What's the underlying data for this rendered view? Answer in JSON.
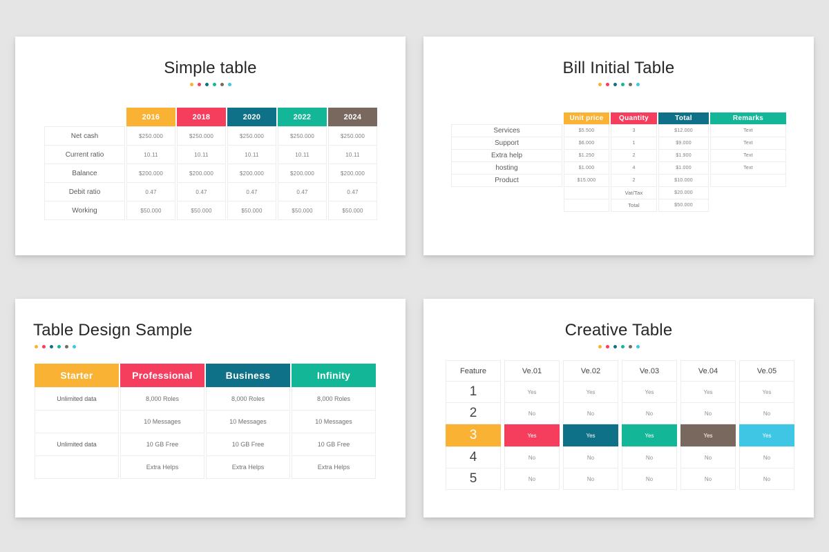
{
  "colors": {
    "page_bg": "#e6e5e5",
    "card_bg": "#ffffff",
    "orange": "#f9b233",
    "pink": "#f53d5e",
    "teal_dark": "#0e7187",
    "green": "#13b797",
    "brown": "#79685e",
    "cyan": "#3fc6e5",
    "dots": [
      "#f9b233",
      "#f53d5e",
      "#0e7187",
      "#13b797",
      "#79685e",
      "#3fc6e5"
    ]
  },
  "slides": {
    "simple": {
      "title": "Simple table",
      "columns": [
        {
          "label": "2016",
          "color": "#f9b233"
        },
        {
          "label": "2018",
          "color": "#f53d5e"
        },
        {
          "label": "2020",
          "color": "#0e7187"
        },
        {
          "label": "2022",
          "color": "#13b797"
        },
        {
          "label": "2024",
          "color": "#79685e"
        }
      ],
      "rows": [
        {
          "label": "Net cash",
          "values": [
            "$250.000",
            "$250.000",
            "$250.000",
            "$250.000",
            "$250.000"
          ]
        },
        {
          "label": "Current ratio",
          "values": [
            "10.11",
            "10.11",
            "10.11",
            "10.11",
            "10.11"
          ]
        },
        {
          "label": "Balance",
          "values": [
            "$200.000",
            "$200.000",
            "$200.000",
            "$200.000",
            "$200.000"
          ]
        },
        {
          "label": "Debit ratio",
          "values": [
            "0.47",
            "0.47",
            "0.47",
            "0.47",
            "0.47"
          ]
        },
        {
          "label": "Working",
          "values": [
            "$50.000",
            "$50.000",
            "$50.000",
            "$50.000",
            "$50.000"
          ]
        }
      ]
    },
    "bill": {
      "title": "Bill Initial Table",
      "columns": [
        {
          "label": "Unit price",
          "color": "#f9b233"
        },
        {
          "label": "Quantity",
          "color": "#f53d5e"
        },
        {
          "label": "Total",
          "color": "#0e7187"
        },
        {
          "label": "Remarks",
          "color": "#13b797"
        }
      ],
      "rows": [
        {
          "label": "Services",
          "unit_price": "$5.500",
          "quantity": "3",
          "total": "$12.000",
          "remarks": "Text"
        },
        {
          "label": "Support",
          "unit_price": "$6.000",
          "quantity": "1",
          "total": "$9.000",
          "remarks": "Text"
        },
        {
          "label": "Extra help",
          "unit_price": "$1.250",
          "quantity": "2",
          "total": "$1.900",
          "remarks": "Text"
        },
        {
          "label": "hosting",
          "unit_price": "$1.000",
          "quantity": "4",
          "total": "$1.000",
          "remarks": "Text"
        },
        {
          "label": "Product",
          "unit_price": "$15.000",
          "quantity": "2",
          "total": "$10.000",
          "remarks": ""
        }
      ],
      "summary": [
        {
          "label": "Vat/Tax",
          "total": "$20.000"
        },
        {
          "label": "Total",
          "total": "$50.000"
        }
      ]
    },
    "design": {
      "title": "Table Design Sample",
      "columns": [
        {
          "label": "Starter",
          "color": "#f9b233"
        },
        {
          "label": "Professional",
          "color": "#f53d5e"
        },
        {
          "label": "Business",
          "color": "#0e7187"
        },
        {
          "label": "Infinity",
          "color": "#13b797"
        }
      ],
      "rows": [
        [
          "Unlimited data",
          "8,000 Roles",
          "8,000 Roles",
          "8,000 Roles"
        ],
        [
          "",
          "10 Messages",
          "10 Messages",
          "10 Messages"
        ],
        [
          "Unlimited data",
          "10 GB Free",
          "10 GB Free",
          "10 GB Free"
        ],
        [
          "",
          "Extra Helps",
          "Extra Helps",
          "Extra Helps"
        ]
      ]
    },
    "creative": {
      "title": "Creative Table",
      "columns": [
        "Feature",
        "Ve.01",
        "Ve.02",
        "Ve.03",
        "Ve.04",
        "Ve.05"
      ],
      "rows": [
        {
          "feature": "1",
          "values": [
            "Yes",
            "Yes",
            "Yes",
            "Yes",
            "Yes"
          ]
        },
        {
          "feature": "2",
          "values": [
            "No",
            "No",
            "No",
            "No",
            "No"
          ]
        },
        {
          "feature": "3",
          "values": [
            "Yes",
            "Yes",
            "Yes",
            "Yes",
            "Yes"
          ],
          "highlight_colors": [
            "#f9b233",
            "#f53d5e",
            "#0e7187",
            "#13b797",
            "#79685e",
            "#3fc6e5"
          ]
        },
        {
          "feature": "4",
          "values": [
            "No",
            "No",
            "No",
            "No",
            "No"
          ]
        },
        {
          "feature": "5",
          "values": [
            "No",
            "No",
            "No",
            "No",
            "No"
          ]
        }
      ]
    }
  }
}
